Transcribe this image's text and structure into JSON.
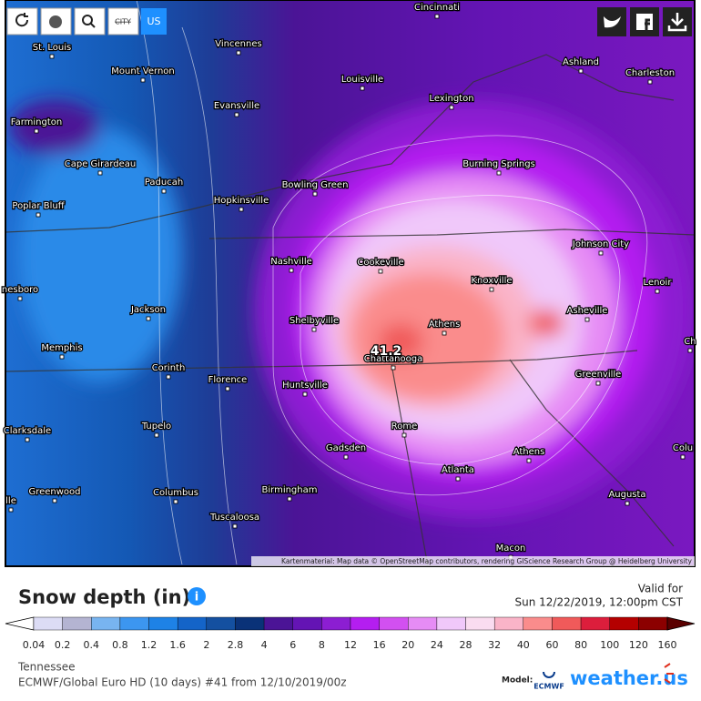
{
  "toolbar": {
    "city": "CITY",
    "region": "US"
  },
  "map": {
    "cities": [
      "Cincinnati",
      "St. Louis",
      "Vincennes",
      "Mount Vernon",
      "Louisville",
      "Ashland",
      "Charleston",
      "Lexington",
      "Evansville",
      "Farmington",
      "Cape Girardeau",
      "Paducah",
      "Burning Springs",
      "Bowling Green",
      "Hopkinsville",
      "Poplar Bluff",
      "Johnson City",
      "Nashville",
      "Cookeville",
      "Knoxville",
      "Lenoir",
      "nesboro",
      "Jackson",
      "Asheville",
      "Shelbyville",
      "Athens",
      "Memphis",
      "Chattanooga",
      "Ch",
      "Corinth",
      "Florence",
      "Greenville",
      "Huntsville",
      "Clarksdale",
      "Tupelo",
      "Rome",
      "Gadsden",
      "Athens",
      "Colu",
      "Atlanta",
      "Greenwood",
      "Columbus",
      "Birmingham",
      "Augusta",
      "Tuscaloosa",
      "Macon",
      "lle"
    ],
    "max_label": "41.2",
    "attribution": "Kartenmaterial: Map data © OpenStreetMap contributors, rendering GIScience Research Group @ Heidelberg University"
  },
  "legend": {
    "title": "Snow depth (in)",
    "valid_label": "Valid for",
    "valid_time": "Sun 12/22/2019, 12:00pm CST",
    "ticks": [
      0.04,
      0.2,
      0.4,
      0.8,
      1.2,
      1.6,
      2,
      2.8,
      4,
      6,
      8,
      12,
      16,
      20,
      24,
      28,
      32,
      40,
      60,
      80,
      100,
      120,
      160
    ],
    "colors": [
      "#ffffff",
      "#dcdcf5",
      "#b4b4d2",
      "#78b4f0",
      "#3c96f0",
      "#1e82e6",
      "#1464c8",
      "#1450a0",
      "#0a3278",
      "#4b1496",
      "#6414b4",
      "#8c1ed2",
      "#b41ef0",
      "#d250f0",
      "#e68cf5",
      "#f0c8fa",
      "#fadcf0",
      "#fab4c8",
      "#fa8c8c",
      "#f05a5a",
      "#dc1e3c",
      "#b40000",
      "#8c0000",
      "#5a0000"
    ]
  },
  "footer": {
    "region": "Tennessee",
    "model_run": "ECMWF/Global Euro HD (10 days) #41 from 12/10/2019/00z",
    "model_label": "Model:",
    "model_name": "ECMWF",
    "brand": "weather.us"
  }
}
